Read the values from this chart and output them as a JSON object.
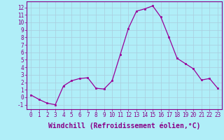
{
  "x": [
    0,
    1,
    2,
    3,
    4,
    5,
    6,
    7,
    8,
    9,
    10,
    11,
    12,
    13,
    14,
    15,
    16,
    17,
    18,
    19,
    20,
    21,
    22,
    23
  ],
  "y": [
    0.3,
    -0.3,
    -0.8,
    -1.0,
    1.5,
    2.2,
    2.5,
    2.6,
    1.2,
    1.1,
    2.2,
    5.7,
    9.2,
    11.5,
    11.8,
    12.2,
    10.7,
    8.0,
    5.2,
    4.5,
    3.8,
    2.3,
    2.5,
    1.2
  ],
  "line_color": "#990099",
  "marker": "s",
  "markersize": 2,
  "linewidth": 0.9,
  "bg_color": "#b0eef8",
  "grid_color": "#aaccdd",
  "xlabel": "Windchill (Refroidissement éolien,°C)",
  "ylabel_ticks": [
    -1,
    0,
    1,
    2,
    3,
    4,
    5,
    6,
    7,
    8,
    9,
    10,
    11,
    12
  ],
  "xlim": [
    -0.5,
    23.5
  ],
  "ylim": [
    -1.6,
    12.8
  ],
  "xticks": [
    0,
    1,
    2,
    3,
    4,
    5,
    6,
    7,
    8,
    9,
    10,
    11,
    12,
    13,
    14,
    15,
    16,
    17,
    18,
    19,
    20,
    21,
    22,
    23
  ],
  "tick_color": "#880088",
  "label_color": "#880088",
  "tick_fontsize": 5.5,
  "xlabel_fontsize": 7.0
}
